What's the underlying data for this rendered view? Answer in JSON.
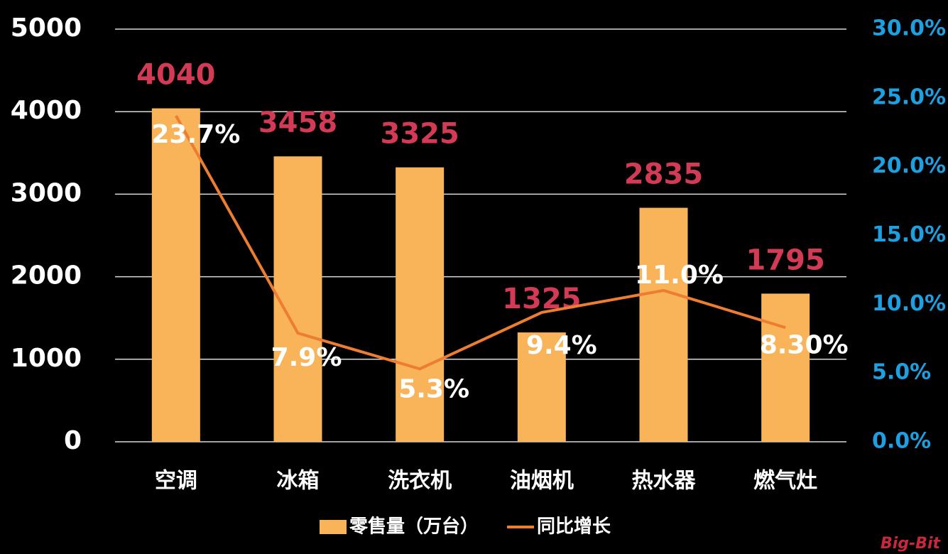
{
  "chart_data": {
    "type": "bar-line",
    "categories": [
      "空调",
      "冰箱",
      "洗衣机",
      "油烟机",
      "热水器",
      "燃气灶"
    ],
    "series": [
      {
        "name": "零售量（万台）",
        "type": "bar",
        "color": "#f9b359",
        "values": [
          4040,
          3458,
          3325,
          1325,
          2835,
          1795
        ],
        "label_color": "#d23a55"
      },
      {
        "name": "同比增长",
        "type": "line",
        "axis": "y2",
        "color": "#ed7d31",
        "values": [
          23.7,
          7.9,
          5.3,
          9.4,
          11.0,
          8.3
        ],
        "value_labels": [
          "23.7%",
          "7.9%",
          "5.3%",
          "9.4%",
          "11.0%",
          "8.30%"
        ],
        "label_color": "#ffffff"
      }
    ],
    "ylim": [
      0,
      5000
    ],
    "yticks": [
      0,
      1000,
      2000,
      3000,
      4000,
      5000
    ],
    "y2lim": [
      0,
      30
    ],
    "y2ticks": [
      {
        "value": 0,
        "label": "0.0%"
      },
      {
        "value": 5,
        "label": "5.0%"
      },
      {
        "value": 10,
        "label": "10.0%"
      },
      {
        "value": 15,
        "label": "15.0%"
      },
      {
        "value": 20,
        "label": "20.0%"
      },
      {
        "value": 25,
        "label": "25.0%"
      },
      {
        "value": 30,
        "label": "30.0%"
      }
    ],
    "y2_color": "#1e9fe0",
    "grid": true,
    "legend": "bottom",
    "watermark": "Big-Bit"
  }
}
